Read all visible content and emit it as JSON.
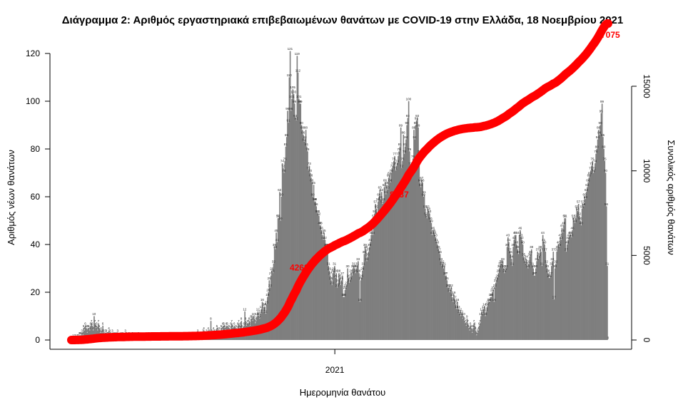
{
  "chart_data": {
    "type": "bar",
    "title": "Διάγραμμα 2: Αριθμός εργαστηριακά επιβεβαιωμένων θανάτων με COVID-19 στην Ελλάδα, 18 Νοεμβρίου 2021",
    "xlabel": "Ημερομηνία θανάτου",
    "ylabel": "Αριθμός νέων θανάτων",
    "y2label": "Συνολικός αριθμός θανάτων",
    "x_range": [
      "2020-03-12",
      "2021-11-18"
    ],
    "x_ticks": [
      {
        "date": "2021-01-01",
        "label": "2021"
      }
    ],
    "ylim": [
      0,
      120
    ],
    "y_ticks": [
      "0",
      "20",
      "40",
      "60",
      "80",
      "100",
      "120"
    ],
    "y2lim": [
      0,
      15000
    ],
    "y2_ticks": [
      "0",
      "5000",
      "10000",
      "15000"
    ],
    "bar_color": "#7f7f7f",
    "line_color": "#ff0000",
    "grid": false,
    "series": [
      {
        "type": "bar",
        "values": [
          0,
          0,
          1,
          0,
          1,
          1,
          0,
          1,
          1,
          2,
          2,
          2,
          3,
          2,
          5,
          4,
          6,
          5,
          3,
          5,
          5,
          4,
          6,
          7,
          6,
          4,
          10,
          7,
          5,
          6,
          4,
          7,
          5,
          3,
          4,
          3,
          6,
          3,
          2,
          3,
          3,
          2,
          2,
          4,
          3,
          2,
          1,
          3,
          2,
          1,
          2,
          1,
          2,
          3,
          1,
          1,
          0,
          2,
          1,
          2,
          0,
          1,
          3,
          2,
          1,
          0,
          2,
          1,
          1,
          0,
          2,
          1,
          0,
          1,
          0,
          0,
          1,
          2,
          1,
          0,
          1,
          0,
          1,
          0,
          0,
          1,
          1,
          0,
          1,
          2,
          0,
          0,
          1,
          0,
          0,
          1,
          0,
          0,
          1,
          0,
          0,
          1,
          0,
          1,
          0,
          0,
          1,
          1,
          0,
          0,
          1,
          0,
          1,
          0,
          1,
          0,
          0,
          1,
          2,
          0,
          1,
          0,
          0,
          1,
          0,
          1,
          0,
          0,
          1,
          1,
          0,
          2,
          0,
          1,
          0,
          1,
          0,
          1,
          2,
          1,
          0,
          1,
          1,
          2,
          1,
          3,
          2,
          1,
          2,
          2,
          1,
          3,
          4,
          2,
          1,
          3,
          2,
          4,
          3,
          2,
          8,
          3,
          2,
          4,
          3,
          2,
          3,
          5,
          4,
          3,
          4,
          2,
          5,
          4,
          6,
          6,
          5,
          4,
          6,
          6,
          4,
          5,
          3,
          6,
          7,
          5,
          4,
          6,
          4,
          5,
          3,
          6,
          7,
          5,
          6,
          8,
          5,
          4,
          6,
          12,
          8,
          6,
          7,
          7,
          8,
          6,
          9,
          9,
          8,
          10,
          9,
          7,
          8,
          10,
          12,
          10,
          9,
          11,
          13,
          16,
          12,
          14,
          14,
          11,
          15,
          18,
          20,
          25,
          22,
          27,
          29,
          28,
          32,
          39,
          38,
          45,
          41,
          51,
          51,
          62,
          50,
          60,
          74,
          72,
          70,
          75,
          81,
          85,
          96,
          91,
          110,
          121,
          96,
          101,
          105,
          103,
          99,
          93,
          92,
          119,
          112,
          101,
          99,
          99,
          90,
          88,
          86,
          83,
          84,
          88,
          81,
          79,
          71,
          73,
          70,
          68,
          66,
          60,
          65,
          58,
          58,
          56,
          53,
          53,
          52,
          48,
          48,
          46,
          44,
          42,
          45,
          42,
          39,
          39,
          36,
          31,
          29,
          27,
          25,
          23,
          28,
          29,
          31,
          26,
          28,
          22,
          24,
          28,
          26,
          23,
          25,
          27,
          18,
          18,
          21,
          22,
          23,
          30,
          26,
          24,
          25,
          28,
          27,
          30,
          31,
          30,
          28,
          30,
          31,
          33,
          28,
          16,
          25,
          26,
          29,
          31,
          36,
          39,
          38,
          33,
          35,
          37,
          39,
          41,
          44,
          48,
          44,
          51,
          53,
          57,
          55,
          52,
          58,
          60,
          63,
          59,
          62,
          57,
          58,
          64,
          66,
          61,
          65,
          63,
          68,
          69,
          66,
          70,
          72,
          73,
          75,
          77,
          71,
          73,
          74,
          77,
          79,
          81,
          89,
          72,
          75,
          86,
          78,
          81,
          84,
          90,
          93,
          100,
          79,
          73,
          70,
          72,
          76,
          88,
          84,
          90,
          92,
          93,
          89,
          78,
          66,
          64,
          67,
          66,
          60,
          61,
          55,
          52,
          51,
          55,
          54,
          53,
          50,
          49,
          44,
          46,
          45,
          44,
          43,
          41,
          40,
          38,
          37,
          36,
          33,
          31,
          32,
          30,
          31,
          27,
          27,
          25,
          22,
          22,
          20,
          21,
          22,
          18,
          16,
          19,
          17,
          15,
          13,
          16,
          13,
          11,
          12,
          10,
          11,
          9,
          10,
          8,
          7,
          6,
          9,
          7,
          5,
          4,
          6,
          5,
          3,
          5,
          7,
          6,
          4,
          2,
          3,
          4,
          6,
          7,
          10,
          12,
          11,
          13,
          14,
          10,
          12,
          14,
          15,
          16,
          16,
          18,
          18,
          20,
          21,
          16,
          22,
          24,
          25,
          26,
          28,
          30,
          31,
          32,
          32,
          33,
          30,
          28,
          29,
          30,
          39,
          43,
          41,
          37,
          36,
          34,
          31,
          39,
          42,
          44,
          44,
          40,
          38,
          36,
          44,
          46,
          43,
          42,
          40,
          35,
          33,
          32,
          34,
          31,
          30,
          32,
          35,
          36,
          38,
          31,
          30,
          27,
          27,
          30,
          33,
          37,
          34,
          35,
          38,
          37,
          31,
          44,
          41,
          40,
          37,
          32,
          30,
          28,
          26,
          26,
          27,
          31,
          33,
          37,
          17,
          30,
          32,
          37,
          38,
          40,
          39,
          43,
          42,
          47,
          45,
          48,
          51,
          51,
          37,
          40,
          42,
          43,
          44,
          44,
          43,
          46,
          51,
          50,
          49,
          51,
          55,
          54,
          57,
          52,
          50,
          48,
          55,
          57,
          56,
          60,
          59,
          62,
          64,
          66,
          68,
          69,
          71,
          73,
          75,
          70,
          71,
          74,
          78,
          80,
          84,
          88,
          86,
          90,
          95,
          99,
          85,
          80,
          75,
          70,
          56,
          31,
          0
        ]
      },
      {
        "type": "line",
        "axis": "right",
        "cumulative": true
      }
    ],
    "annotations": [
      "4268",
      "8537",
      "17075"
    ]
  }
}
